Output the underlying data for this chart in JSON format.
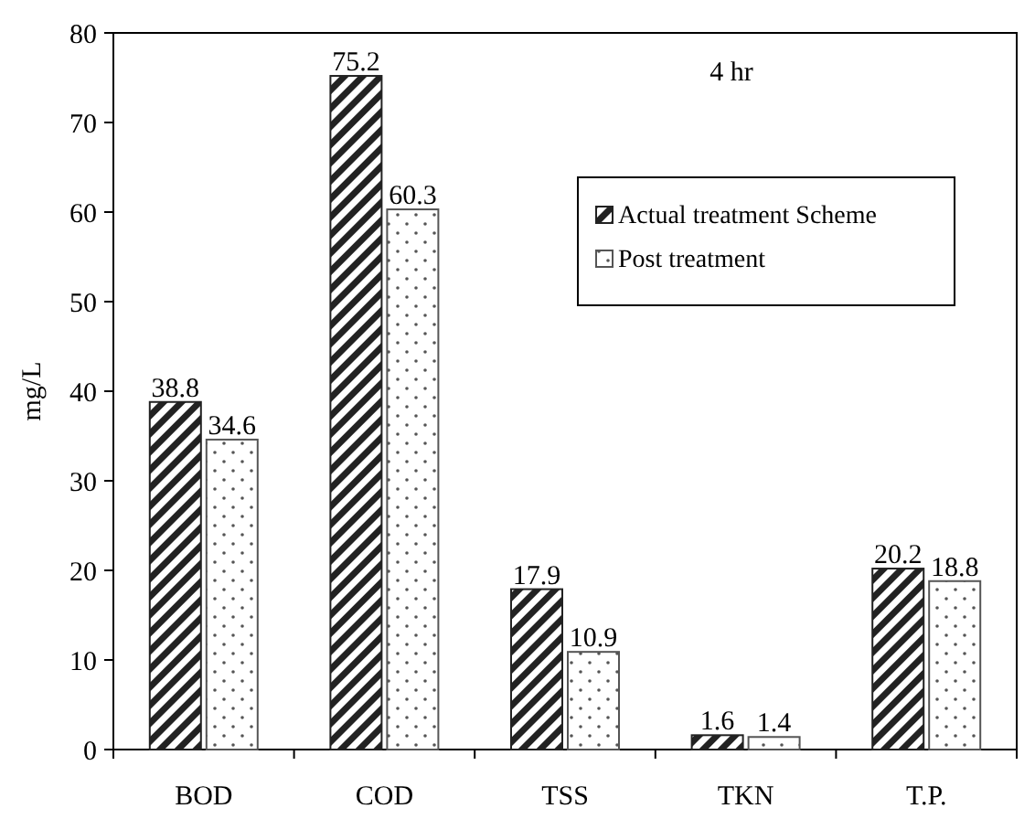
{
  "chart_data": {
    "type": "bar",
    "ylabel": "mg/L",
    "categories": [
      "BOD",
      "COD",
      "TSS",
      "TKN",
      "T.P."
    ],
    "series": [
      {
        "name": "Actual treatment Scheme",
        "color": "#222222",
        "values": [
          38.8,
          75.2,
          17.9,
          1.6,
          20.2
        ]
      },
      {
        "name": "Post treatment",
        "color": "#555555",
        "values": [
          34.6,
          60.3,
          10.9,
          1.4,
          18.8
        ]
      }
    ],
    "ylim": [
      0,
      80
    ],
    "yticks": [
      0,
      10,
      20,
      30,
      40,
      50,
      60,
      70,
      80
    ],
    "grid": false,
    "legend": "top right",
    "data_labels": true,
    "annotations": [
      "4 hr"
    ]
  }
}
